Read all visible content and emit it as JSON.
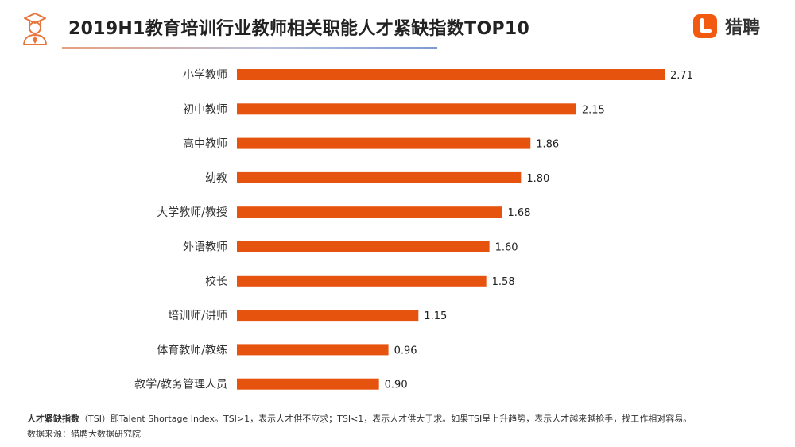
{
  "header": {
    "title": "2019H1教育培训行业教师相关职能人才紧缺指数TOP10",
    "icon": "person-teacher-icon"
  },
  "brand": {
    "name": "猎聘",
    "logo_letter": "L",
    "color": "#f25a10"
  },
  "chart_data": {
    "type": "bar",
    "orientation": "horizontal",
    "title": "2019H1教育培训行业教师相关职能人才紧缺指数TOP10",
    "categories": [
      "小学教师",
      "初中教师",
      "高中教师",
      "幼教",
      "大学教师/教授",
      "外语教师",
      "校长",
      "培训师/讲师",
      "体育教师/教练",
      "教学/教务管理人员"
    ],
    "values": [
      2.71,
      2.15,
      1.86,
      1.8,
      1.68,
      1.6,
      1.58,
      1.15,
      0.96,
      0.9
    ],
    "value_labels": [
      "2.71",
      "2.15",
      "1.86",
      "1.80",
      "1.68",
      "1.60",
      "1.58",
      "1.15",
      "0.96",
      "0.90"
    ],
    "bar_color": "#e5530e",
    "xlabel": "",
    "ylabel": "",
    "xlim": [
      0,
      2.71
    ],
    "grid": false,
    "legend": "none"
  },
  "footer": {
    "note_term": "人才紧缺指数",
    "note_body": "（TSI）即Talent Shortage Index。TSI>1，表示人才供不应求；TSI<1，表示人才供大于求。如果TSI呈上升趋势，表示人才越来越抢手，找工作相对容易。",
    "source": "数据来源：猎聘大数据研究院"
  }
}
